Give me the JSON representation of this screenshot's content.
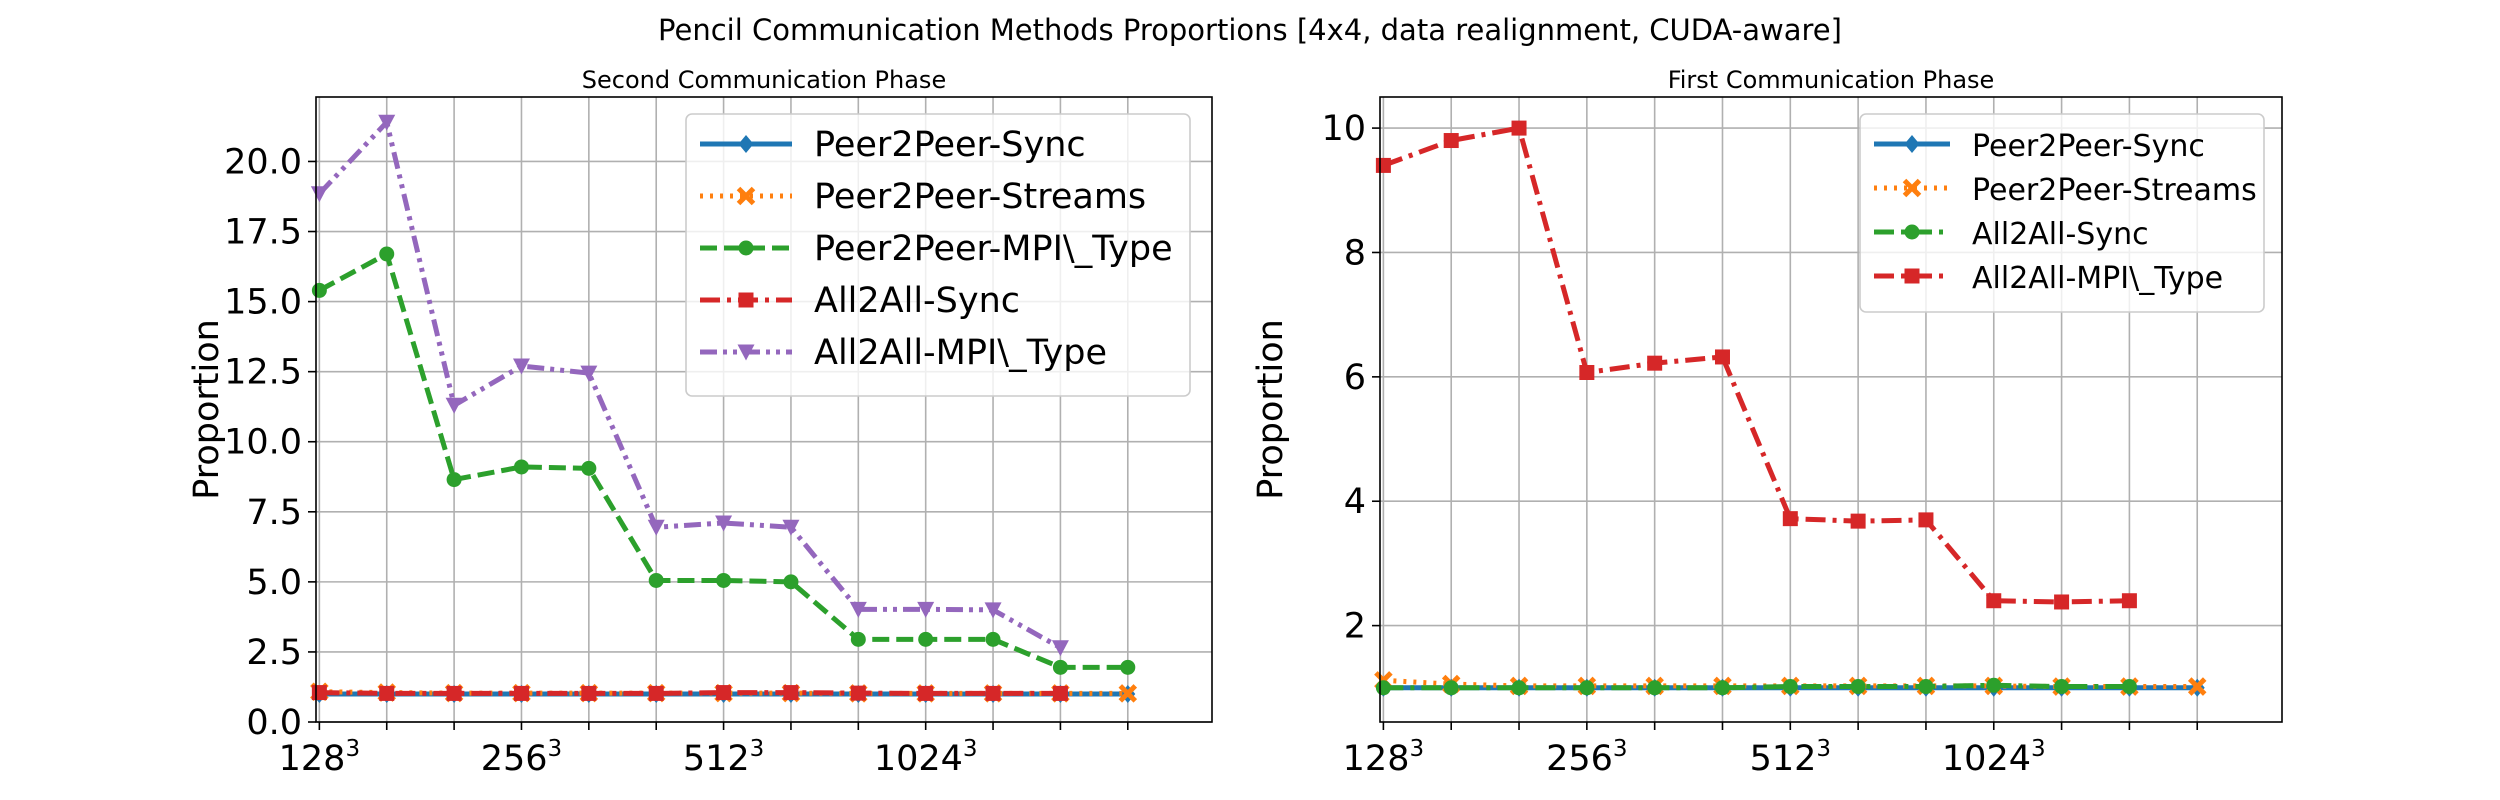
{
  "figure_title": "Pencil Communication Methods Proportions [4x4, data realignment, CUDA-aware]",
  "chart_data": [
    {
      "type": "line",
      "title": "Second Communication Phase",
      "xlabel": "",
      "ylabel": "Proportion",
      "x": [
        1,
        2,
        3,
        4,
        5,
        6,
        7,
        8,
        9,
        10,
        11,
        12,
        13
      ],
      "xticks": [
        {
          "x": 1,
          "base": "128",
          "exp": "3"
        },
        {
          "x": 4,
          "base": "256",
          "exp": "3"
        },
        {
          "x": 7,
          "base": "512",
          "exp": "3"
        },
        {
          "x": 10,
          "base": "1024",
          "exp": "3"
        }
      ],
      "xlim": [
        0.95,
        14.25
      ],
      "ylim": [
        0,
        22.3
      ],
      "yticks": [
        0.0,
        2.5,
        5.0,
        7.5,
        10.0,
        12.5,
        15.0,
        17.5,
        20.0
      ],
      "ytick_labels": [
        "0.0",
        "2.5",
        "5.0",
        "7.5",
        "10.0",
        "12.5",
        "15.0",
        "17.5",
        "20.0"
      ],
      "grid": true,
      "legend_position": "top-right",
      "series": [
        {
          "name": "Peer2Peer-Sync",
          "color": "#1f77b4",
          "style": "solid",
          "marker": "diamond",
          "values": [
            1.0,
            1.0,
            1.0,
            1.0,
            1.0,
            1.0,
            1.0,
            1.0,
            1.0,
            1.0,
            1.0,
            1.0,
            1.0
          ]
        },
        {
          "name": "Peer2Peer-Streams",
          "color": "#ff7f0e",
          "style": "dotted",
          "marker": "x",
          "values": [
            1.08,
            1.05,
            1.03,
            1.03,
            1.03,
            1.03,
            1.03,
            1.03,
            1.02,
            1.02,
            1.02,
            1.02,
            1.02
          ]
        },
        {
          "name": "Peer2Peer-MPI\\_Type",
          "color": "#2ca02c",
          "style": "dashed",
          "marker": "circle",
          "values": [
            15.4,
            16.7,
            8.65,
            9.1,
            9.05,
            5.05,
            5.05,
            5.0,
            2.95,
            2.95,
            2.95,
            1.95,
            1.95
          ]
        },
        {
          "name": "All2All-Sync",
          "color": "#d62728",
          "style": "dashdot",
          "marker": "square",
          "values": [
            1.05,
            1.02,
            1.02,
            1.02,
            1.02,
            1.02,
            1.05,
            1.05,
            1.03,
            1.02,
            1.02,
            1.02,
            null
          ]
        },
        {
          "name": "All2All-MPI\\_Type",
          "color": "#9467bd",
          "style": "dashdotdot",
          "marker": "triangle-down",
          "values": [
            18.85,
            21.4,
            11.3,
            12.7,
            12.45,
            6.95,
            7.1,
            6.95,
            4.02,
            4.02,
            4.0,
            2.65,
            null
          ]
        }
      ]
    },
    {
      "type": "line",
      "title": "First Communication Phase",
      "xlabel": "",
      "ylabel": "Proportion",
      "x": [
        1,
        2,
        3,
        4,
        5,
        6,
        7,
        8,
        9,
        10,
        11,
        12,
        13
      ],
      "xticks": [
        {
          "x": 1,
          "base": "128",
          "exp": "3"
        },
        {
          "x": 4,
          "base": "256",
          "exp": "3"
        },
        {
          "x": 7,
          "base": "512",
          "exp": "3"
        },
        {
          "x": 10,
          "base": "1024",
          "exp": "3"
        }
      ],
      "xlim": [
        0.95,
        14.25
      ],
      "ylim": [
        0.45,
        10.5
      ],
      "yticks": [
        2,
        4,
        6,
        8,
        10
      ],
      "ytick_labels": [
        "2",
        "4",
        "6",
        "8",
        "10"
      ],
      "grid": true,
      "legend_position": "top-right",
      "series": [
        {
          "name": "Peer2Peer-Sync",
          "color": "#1f77b4",
          "style": "solid",
          "marker": "diamond",
          "values": [
            1.0,
            1.0,
            1.0,
            1.0,
            1.0,
            1.0,
            1.0,
            1.0,
            1.0,
            1.0,
            1.0,
            1.0,
            1.0
          ]
        },
        {
          "name": "Peer2Peer-Streams",
          "color": "#ff7f0e",
          "style": "dotted",
          "marker": "x",
          "values": [
            1.12,
            1.06,
            1.03,
            1.03,
            1.03,
            1.03,
            1.03,
            1.03,
            1.03,
            1.03,
            1.02,
            1.02,
            1.02
          ]
        },
        {
          "name": "All2All-Sync",
          "color": "#2ca02c",
          "style": "dashdot",
          "marker": "circle",
          "values": [
            1.0,
            1.0,
            1.0,
            1.0,
            1.0,
            1.0,
            1.02,
            1.02,
            1.02,
            1.04,
            1.02,
            1.02,
            null
          ]
        },
        {
          "name": "All2All-MPI\\_Type",
          "color": "#d62728",
          "style": "dashdot",
          "marker": "square",
          "values": [
            9.4,
            9.8,
            10.0,
            6.07,
            6.22,
            6.32,
            3.72,
            3.68,
            3.7,
            2.4,
            2.38,
            2.4,
            null
          ]
        }
      ]
    }
  ]
}
